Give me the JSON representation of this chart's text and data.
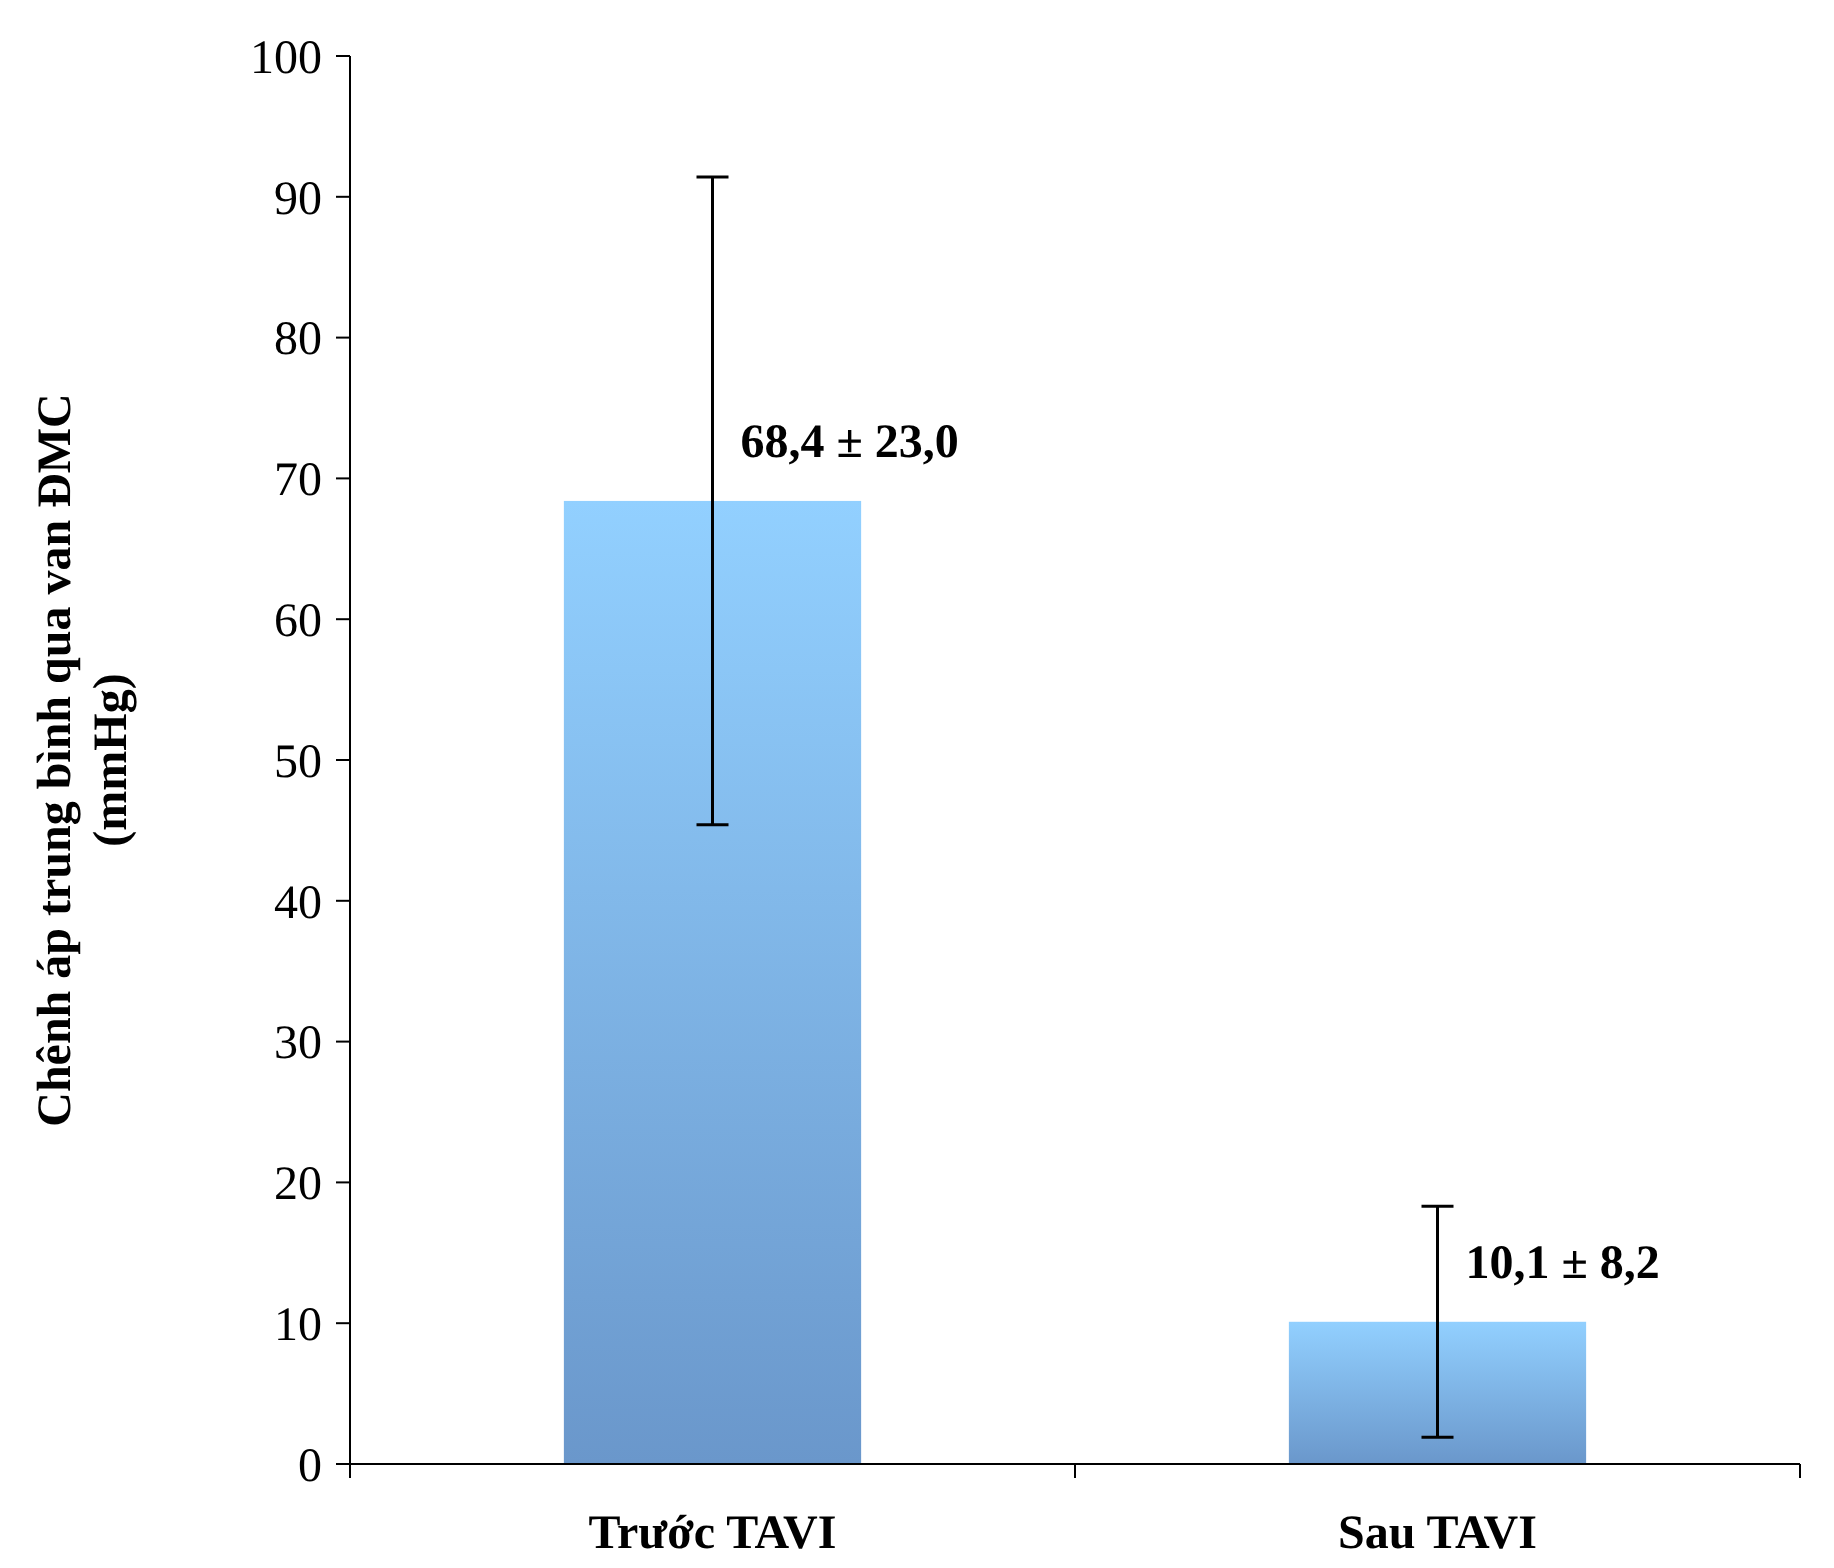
{
  "chart_data": {
    "type": "bar",
    "ylabel": "Chênh áp trung bình qua van ĐMC\n(mmHg)",
    "categories": [
      "Trước TAVI",
      "Sau TAVI"
    ],
    "values": [
      68.4,
      10.1
    ],
    "errors": [
      23.0,
      8.2
    ],
    "color": "#7aaeea",
    "value_labels": [
      "68,4 ± 23,0",
      "10,1 ± 8,2"
    ],
    "ylim": [
      0,
      100
    ],
    "yticks": [
      0,
      10,
      20,
      30,
      40,
      50,
      60,
      70,
      80,
      90,
      100
    ],
    "grid": false
  }
}
